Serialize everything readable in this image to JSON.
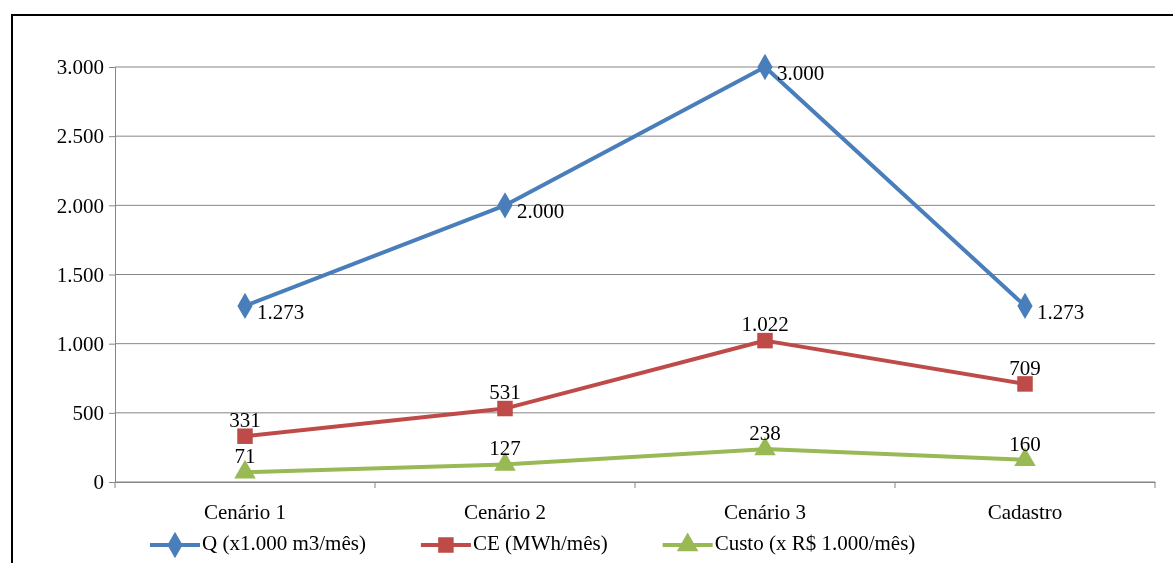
{
  "chart_data": {
    "type": "line",
    "categories": [
      "Cenário 1",
      "Cenário 2",
      "Cenário 3",
      "Cadastro"
    ],
    "ylim": [
      0,
      3000
    ],
    "yticks": [
      0,
      {
        "value": 500,
        "label": "500"
      },
      {
        "value": 1000,
        "label": "1.000"
      },
      {
        "value": 1500,
        "label": "1.500"
      },
      {
        "value": 2000,
        "label": "2.000"
      },
      {
        "value": 2500,
        "label": "2.500"
      },
      {
        "value": 3000,
        "label": "3.000"
      }
    ],
    "grid": "y",
    "legend": "bottom",
    "series": [
      {
        "name": "Q (x1.000 m3/mês)",
        "color": "#4a7ebb",
        "marker": "diamond",
        "values": [
          1273,
          2000,
          3000,
          1273
        ],
        "value_labels": [
          "1.273",
          "2.000",
          "3.000",
          "1.273"
        ]
      },
      {
        "name": "CE (MWh/mês)",
        "color": "#be4b48",
        "marker": "square",
        "values": [
          331,
          531,
          1022,
          709
        ],
        "value_labels": [
          "331",
          "531",
          "1.022",
          "709"
        ]
      },
      {
        "name": "Custo (x R$ 1.000/mês)",
        "color": "#98b954",
        "marker": "triangle",
        "values": [
          71,
          127,
          238,
          160
        ],
        "value_labels": [
          "71",
          "127",
          "238",
          "160"
        ]
      }
    ]
  }
}
